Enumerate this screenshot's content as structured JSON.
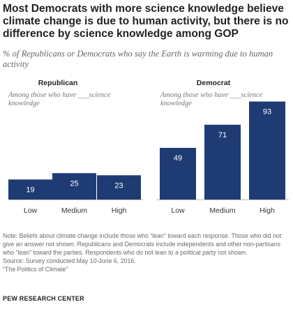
{
  "header": {
    "title": "Most Democrats with more science knowledge believe climate change is due to human activity, but there is no difference by science knowledge among GOP",
    "subtitle": "% of Republicans or Democrats who say the Earth is warming due to human activity"
  },
  "chart_data": [
    {
      "type": "bar",
      "title": "Republican",
      "subtitle": "Among those who have ___science knowledge",
      "categories": [
        "Low",
        "Medium",
        "High"
      ],
      "values": [
        19,
        25,
        23
      ],
      "ylim": [
        0,
        100
      ],
      "grid": false,
      "color": "#1f3b73"
    },
    {
      "type": "bar",
      "title": "Democrat",
      "subtitle": "Among those who have ___science knowledge",
      "categories": [
        "Low",
        "Medium",
        "High"
      ],
      "values": [
        49,
        71,
        93
      ],
      "ylim": [
        0,
        100
      ],
      "grid": false,
      "color": "#1f3b73"
    }
  ],
  "notes": {
    "note": "Note: Beliefs about climate change include those who “lean” toward each response. Those who did not give an answer not shown. Republicans and Democrats include independents and other non-partisans who “lean” toward the parties. Respondents who do not lean to a political party not shown.",
    "source": "Source: Survey conducted May 10-June 6, 2016.",
    "report": "“The Politics of Climate”",
    "org": "PEW RESEARCH CENTER"
  }
}
